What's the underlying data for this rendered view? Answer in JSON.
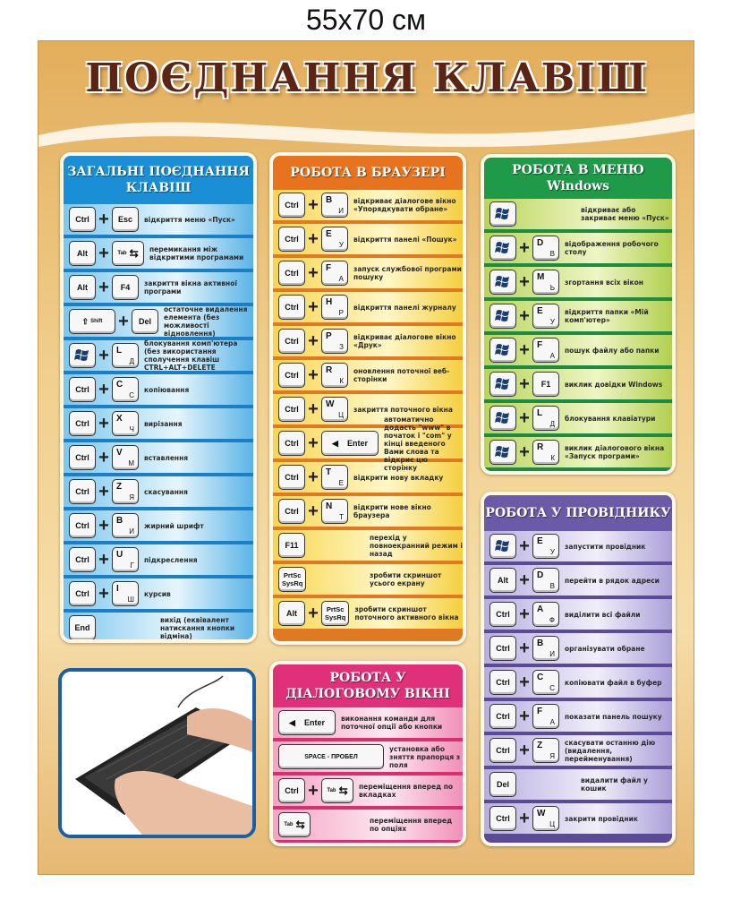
{
  "size_label": "55x70 см",
  "title": "ПОЄДНАННЯ КЛАВІШ",
  "colors": {
    "blue": "#1a8fd6",
    "orange": "#e8731e",
    "green": "#1f9a48",
    "purple": "#6a5aa8",
    "pink": "#e0307a",
    "title": "#5b2414"
  },
  "panels": [
    {
      "id": "general",
      "title_lines": [
        "ЗАГАЛЬНІ ПОЄДНАННЯ",
        "КЛАВІШ"
      ],
      "rows": [
        {
          "keys": [
            {
              "label": "Ctrl"
            },
            {
              "label": "Esc"
            }
          ],
          "desc": "відкриття меню «Пуск»"
        },
        {
          "keys": [
            {
              "label": "Alt"
            },
            {
              "label": "Tab",
              "icon": "tab-arrows-icon"
            }
          ],
          "desc": "перемикання між відкритими програмами"
        },
        {
          "keys": [
            {
              "label": "Alt"
            },
            {
              "label": "F4"
            }
          ],
          "desc": "закриття вікна активної програми"
        },
        {
          "keys": [
            {
              "label": "Shift",
              "icon": "shift-arrow-icon"
            },
            {
              "label": "Del"
            }
          ],
          "desc": "остаточне видалення елемента (без можливості відновлення)"
        },
        {
          "keys": [
            {
              "icon": "windows-logo-icon"
            },
            {
              "label": "L",
              "sub": "Д"
            }
          ],
          "desc": "блокування комп'ютера (без використання сполучення клавіш CTRL+ALT+DELETE"
        },
        {
          "keys": [
            {
              "label": "Ctrl"
            },
            {
              "label": "C",
              "sub": "С"
            }
          ],
          "desc": "копіювання"
        },
        {
          "keys": [
            {
              "label": "Ctrl"
            },
            {
              "label": "X",
              "sub": "Ч"
            }
          ],
          "desc": "вирізання"
        },
        {
          "keys": [
            {
              "label": "Ctrl"
            },
            {
              "label": "V",
              "sub": "М"
            }
          ],
          "desc": "вставлення"
        },
        {
          "keys": [
            {
              "label": "Ctrl"
            },
            {
              "label": "Z",
              "sub": "Я"
            }
          ],
          "desc": "скасування"
        },
        {
          "keys": [
            {
              "label": "Ctrl"
            },
            {
              "label": "B",
              "sub": "И"
            }
          ],
          "desc": "жирний шрифт"
        },
        {
          "keys": [
            {
              "label": "Ctrl"
            },
            {
              "label": "U",
              "sub": "Г"
            }
          ],
          "desc": "підкреслення"
        },
        {
          "keys": [
            {
              "label": "Ctrl"
            },
            {
              "label": "I",
              "sub": "Ш"
            }
          ],
          "desc": "курсив"
        },
        {
          "keys": [
            {
              "label": "End"
            }
          ],
          "desc": "вихід (еквівалент натискання кнопки відміна)"
        }
      ]
    },
    {
      "id": "browser",
      "title_lines": [
        "РОБОТА В БРАУЗЕРІ"
      ],
      "rows": [
        {
          "keys": [
            {
              "label": "Ctrl"
            },
            {
              "label": "B",
              "sub": "И"
            }
          ],
          "desc": "відкриває діалогове вікно «Упорядкувати обране»"
        },
        {
          "keys": [
            {
              "label": "Ctrl"
            },
            {
              "label": "E",
              "sub": "У"
            }
          ],
          "desc": "відкриття панелі «Пошук»"
        },
        {
          "keys": [
            {
              "label": "Ctrl"
            },
            {
              "label": "F",
              "sub": "А"
            }
          ],
          "desc": "запуск службової програми пошуку"
        },
        {
          "keys": [
            {
              "label": "Ctrl"
            },
            {
              "label": "H",
              "sub": "Р"
            }
          ],
          "desc": "відкриття панелі журналу"
        },
        {
          "keys": [
            {
              "label": "Ctrl"
            },
            {
              "label": "P",
              "sub": "З"
            }
          ],
          "desc": "відкриває діалогове вікно «Друк»"
        },
        {
          "keys": [
            {
              "label": "Ctrl"
            },
            {
              "label": "R",
              "sub": "К"
            }
          ],
          "desc": "оновлення поточної веб-сторінки"
        },
        {
          "keys": [
            {
              "label": "Ctrl"
            },
            {
              "label": "W",
              "sub": "Ц"
            }
          ],
          "desc": "закриття поточного вікна"
        },
        {
          "keys": [
            {
              "label": "Ctrl"
            },
            {
              "label": "Enter",
              "icon": "enter-arrow-icon"
            }
          ],
          "desc": "автоматично додасть \"www\" в початок і \"com\" у кінці введеного Вами слова та відкриє цю сторінку"
        },
        {
          "keys": [
            {
              "label": "Ctrl"
            },
            {
              "label": "T",
              "sub": "Е"
            }
          ],
          "desc": "відкрити нову вкладку"
        },
        {
          "keys": [
            {
              "label": "Ctrl"
            },
            {
              "label": "N",
              "sub": "Т"
            }
          ],
          "desc": "відкрити нове вікно браузера"
        },
        {
          "keys": [
            {
              "label": "F11"
            }
          ],
          "desc": "перехід у повноекранний режим і назад"
        },
        {
          "keys": [
            {
              "label": "PrtSc\nSysRq"
            }
          ],
          "desc": "зробити скриншот усього екрану"
        },
        {
          "keys": [
            {
              "label": "Alt"
            },
            {
              "label": "PrtSc\nSysRq"
            }
          ],
          "desc": "зробити скриншот поточного активного вікна"
        }
      ]
    },
    {
      "id": "windows",
      "title_lines": [
        "РОБОТА В МЕНЮ",
        "Windows"
      ],
      "rows": [
        {
          "keys": [
            {
              "icon": "windows-logo-icon"
            }
          ],
          "desc": "відкриває або закриває меню «Пуск»"
        },
        {
          "keys": [
            {
              "icon": "windows-logo-icon"
            },
            {
              "label": "D",
              "sub": "В"
            }
          ],
          "desc": "відображення робочого столу"
        },
        {
          "keys": [
            {
              "icon": "windows-logo-icon"
            },
            {
              "label": "M",
              "sub": "Ь"
            }
          ],
          "desc": "згортання всіх вікон"
        },
        {
          "keys": [
            {
              "icon": "windows-logo-icon"
            },
            {
              "label": "E",
              "sub": "У"
            }
          ],
          "desc": "відкриття папки «Мій комп'ютер»"
        },
        {
          "keys": [
            {
              "icon": "windows-logo-icon"
            },
            {
              "label": "F",
              "sub": "А"
            }
          ],
          "desc": "пошук файлу або папки"
        },
        {
          "keys": [
            {
              "icon": "windows-logo-icon"
            },
            {
              "label": "F1"
            }
          ],
          "desc": "виклик довідки Windows"
        },
        {
          "keys": [
            {
              "icon": "windows-logo-icon"
            },
            {
              "label": "L",
              "sub": "Д"
            }
          ],
          "desc": "блокування клавіатури"
        },
        {
          "keys": [
            {
              "icon": "windows-logo-icon"
            },
            {
              "label": "R",
              "sub": "К"
            }
          ],
          "desc": "виклик діалогового вікна «Запуск програми»"
        }
      ]
    },
    {
      "id": "explorer",
      "title_lines": [
        "РОБОТА У ПРОВІДНИКУ"
      ],
      "rows": [
        {
          "keys": [
            {
              "icon": "windows-logo-icon"
            },
            {
              "label": "E",
              "sub": "У"
            }
          ],
          "desc": "запустити провідник"
        },
        {
          "keys": [
            {
              "label": "Alt"
            },
            {
              "label": "D",
              "sub": "В"
            }
          ],
          "desc": "перейти в рядок адреси"
        },
        {
          "keys": [
            {
              "label": "Ctrl"
            },
            {
              "label": "A",
              "sub": "Ф"
            }
          ],
          "desc": "виділити всі файли"
        },
        {
          "keys": [
            {
              "label": "Ctrl"
            },
            {
              "label": "B",
              "sub": "И"
            }
          ],
          "desc": "організувати обране"
        },
        {
          "keys": [
            {
              "label": "Ctrl"
            },
            {
              "label": "C",
              "sub": "С"
            }
          ],
          "desc": "копіювати файл в буфер"
        },
        {
          "keys": [
            {
              "label": "Ctrl"
            },
            {
              "label": "F",
              "sub": "А"
            }
          ],
          "desc": "показати панель пошуку"
        },
        {
          "keys": [
            {
              "label": "Ctrl"
            },
            {
              "label": "Z",
              "sub": "Я"
            }
          ],
          "desc": "скасувати останню дію (видалення, перейменування)"
        },
        {
          "keys": [
            {
              "label": "Del"
            }
          ],
          "desc": "видалити файл у кошик"
        },
        {
          "keys": [
            {
              "label": "Ctrl"
            },
            {
              "label": "W",
              "sub": "Ц"
            }
          ],
          "desc": "закрити провідник"
        }
      ]
    },
    {
      "id": "dialog",
      "title_lines": [
        "РОБОТА  У",
        "ДІАЛОГОВОМУ ВІКНІ"
      ],
      "rows": [
        {
          "keys": [
            {
              "label": "Enter",
              "icon": "enter-arrow-icon"
            }
          ],
          "desc": "виконання команди для поточної опції або кнопки"
        },
        {
          "keys": [
            {
              "label": "SPACE - ПРОБЕЛ"
            }
          ],
          "desc": "установка або зняття прапорця з поля"
        },
        {
          "keys": [
            {
              "label": "Ctrl"
            },
            {
              "label": "Tab",
              "icon": "tab-arrows-icon"
            }
          ],
          "desc": "переміщення вперед по вкладках"
        },
        {
          "keys": [
            {
              "label": "Tab",
              "icon": "tab-arrows-icon"
            }
          ],
          "desc": "переміщення вперед по опціях"
        }
      ]
    }
  ],
  "photo": {
    "subject": "keyboard-with-hands"
  }
}
